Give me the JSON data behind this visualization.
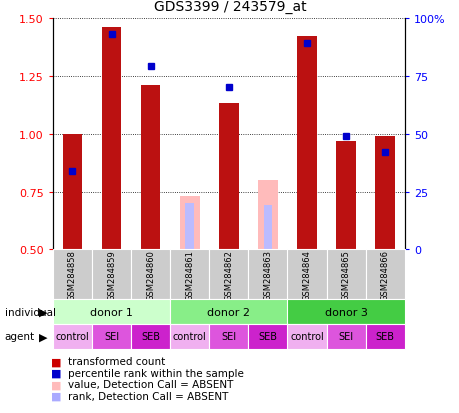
{
  "title": "GDS3399 / 243579_at",
  "samples": [
    "GSM284858",
    "GSM284859",
    "GSM284860",
    "GSM284861",
    "GSM284862",
    "GSM284863",
    "GSM284864",
    "GSM284865",
    "GSM284866"
  ],
  "red_values": [
    1.0,
    1.46,
    1.21,
    null,
    1.13,
    null,
    1.42,
    0.97,
    0.99
  ],
  "blue_values": [
    0.84,
    1.43,
    1.29,
    null,
    1.2,
    null,
    1.39,
    0.99,
    0.92
  ],
  "absent_red": [
    null,
    null,
    null,
    0.73,
    null,
    0.8,
    null,
    null,
    null
  ],
  "absent_blue": [
    null,
    null,
    null,
    0.7,
    null,
    0.69,
    null,
    null,
    null
  ],
  "donors": [
    {
      "label": "donor 1",
      "start": 0,
      "end": 3,
      "color": "#ccffcc"
    },
    {
      "label": "donor 2",
      "start": 3,
      "end": 6,
      "color": "#88ee88"
    },
    {
      "label": "donor 3",
      "start": 6,
      "end": 9,
      "color": "#44cc44"
    }
  ],
  "agents": [
    "control",
    "SEI",
    "SEB",
    "control",
    "SEI",
    "SEB",
    "control",
    "SEI",
    "SEB"
  ],
  "agent_colors": [
    "#f0b0f0",
    "#dd55dd",
    "#cc22cc",
    "#f0b0f0",
    "#dd55dd",
    "#cc22cc",
    "#f0b0f0",
    "#dd55dd",
    "#cc22cc"
  ],
  "ylim_left": [
    0.5,
    1.5
  ],
  "ylim_right": [
    0,
    100
  ],
  "yticks_left": [
    0.5,
    0.75,
    1.0,
    1.25,
    1.5
  ],
  "yticks_right": [
    0,
    25,
    50,
    75,
    100
  ],
  "bar_color_red": "#bb1111",
  "bar_color_absent_red": "#ffbbbb",
  "bar_color_absent_blue": "#bbbbff",
  "blue_marker_color": "#0000cc",
  "bar_width": 0.5,
  "sample_bg": "#cccccc",
  "legend_red": "#cc0000",
  "legend_blue": "#0000cc",
  "legend_pink": "#ffbbbb",
  "legend_lightblue": "#aaaaff"
}
